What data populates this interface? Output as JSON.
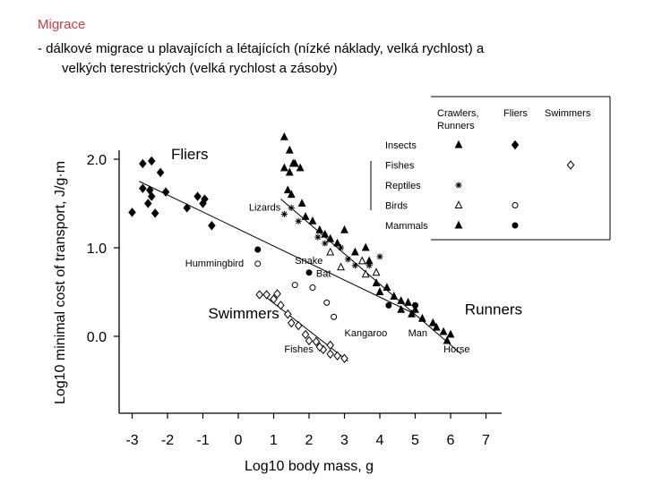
{
  "slide": {
    "title": "Migrace",
    "line1": "- dálkové migrace u plavajících a létajících (nízké náklady, velká rychlost) a",
    "line2": "velkých terestrických (velká rychlost a zásoby)"
  },
  "chart_data": {
    "type": "scatter",
    "xlabel": "Log10 body mass, g",
    "ylabel": "Log10 minimal cost of transport, J/g·m",
    "x_ticks": [
      "-3",
      "-2",
      "-1",
      "0",
      "1",
      "2",
      "3",
      "4",
      "5",
      "6",
      "7"
    ],
    "y_ticks": [
      "2.0",
      "1.0",
      "0.0"
    ],
    "xlim": [
      -3.5,
      7
    ],
    "ylim": [
      -0.9,
      2.4
    ],
    "legend": {
      "position": "top-right",
      "columns": [
        "Crawlers, Runners",
        "Fliers",
        "Swimmers"
      ],
      "rows": [
        {
          "label": "Insects",
          "runner": "triangle",
          "flier": "diamond",
          "swimmer": ""
        },
        {
          "label": "Fishes",
          "runner": "",
          "flier": "",
          "swimmer": "diamond-open"
        },
        {
          "label": "Reptiles",
          "runner": "star",
          "flier": "",
          "swimmer": ""
        },
        {
          "label": "Birds",
          "runner": "triangle-open",
          "flier": "circle-open",
          "swimmer": ""
        },
        {
          "label": "Mammals",
          "runner": "triangle",
          "flier": "circle",
          "swimmer": ""
        }
      ]
    },
    "group_labels": [
      {
        "text": "Fliers",
        "x": -1.9,
        "y": 2.0
      },
      {
        "text": "Swimmers",
        "x": -0.85,
        "y": 0.2
      },
      {
        "text": "Runners",
        "x": 6.4,
        "y": 0.25
      }
    ],
    "annotations": [
      {
        "text": "Lizards",
        "x": 0.3,
        "y": 1.42
      },
      {
        "text": "Hummingbird",
        "x": -1.5,
        "y": 0.79
      },
      {
        "text": "Snake",
        "x": 1.6,
        "y": 0.82
      },
      {
        "text": "Bat",
        "x": 2.2,
        "y": 0.67
      },
      {
        "text": "Kangaroo",
        "x": 3.0,
        "y": 0.0
      },
      {
        "text": "Man",
        "x": 4.8,
        "y": 0.0
      },
      {
        "text": "Fishes",
        "x": 1.3,
        "y": -0.18
      },
      {
        "text": "Horse",
        "x": 5.8,
        "y": -0.18
      }
    ],
    "series": [
      {
        "name": "Insects",
        "marker": "diamond",
        "x": [
          -3.0,
          -2.7,
          -2.45,
          -2.5,
          -2.2,
          -2.45,
          -2.7,
          -2.55,
          -2.35,
          -2.05,
          -1.45,
          -1.15,
          -1.0,
          -0.75,
          -0.95
        ],
        "y": [
          1.4,
          1.95,
          1.98,
          1.65,
          1.85,
          1.58,
          1.67,
          1.5,
          1.39,
          1.63,
          1.45,
          1.58,
          1.5,
          1.25,
          1.55
        ]
      },
      {
        "name": "Insects",
        "marker": "triangle",
        "x": [
          1.3,
          1.45,
          1.6,
          1.3,
          1.45,
          1.55,
          1.75,
          1.8,
          1.5,
          1.4,
          1.9,
          2.1,
          2.3,
          2.45,
          2.6,
          2.8,
          3.0,
          3.3,
          3.6,
          3.7
        ],
        "y": [
          2.25,
          2.1,
          1.95,
          1.9,
          1.85,
          1.95,
          1.9,
          1.5,
          1.6,
          1.65,
          1.35,
          1.3,
          1.2,
          1.15,
          1.1,
          1.05,
          1.2,
          0.95,
          1.0,
          0.85
        ]
      },
      {
        "name": "Mammals",
        "marker": "triangle",
        "x": [
          4.0,
          4.2,
          4.4,
          4.6,
          4.9,
          5.0,
          5.2,
          5.5,
          5.6,
          5.8,
          6.0,
          5.9,
          4.6,
          3.9,
          4.8
        ],
        "y": [
          0.5,
          0.55,
          0.45,
          0.3,
          0.25,
          0.3,
          0.2,
          0.15,
          0.1,
          0.05,
          0.02,
          -0.05,
          0.4,
          0.6,
          0.38
        ]
      },
      {
        "name": "Mammals",
        "marker": "circle",
        "x": [
          0.55,
          2.0,
          4.25,
          5.0
        ],
        "y": [
          0.98,
          0.72,
          0.35,
          0.35
        ]
      },
      {
        "name": "Reptiles",
        "marker": "star",
        "x": [
          1.3,
          1.5,
          1.7,
          2.25,
          2.45,
          2.9,
          3.1,
          3.3,
          3.7,
          4.0,
          5.0
        ],
        "y": [
          1.38,
          1.45,
          1.3,
          1.12,
          1.05,
          1.0,
          0.87,
          0.8,
          0.8,
          0.9,
          0.35
        ]
      },
      {
        "name": "Birds",
        "marker": "circle-open",
        "x": [
          0.55,
          1.6,
          2.1,
          2.7,
          2.5
        ],
        "y": [
          0.82,
          0.58,
          0.55,
          0.22,
          0.38
        ]
      },
      {
        "name": "Birds",
        "marker": "triangle-open",
        "x": [
          2.6,
          2.9,
          3.6,
          3.9,
          3.5
        ],
        "y": [
          0.95,
          0.78,
          0.7,
          0.72,
          0.85
        ]
      },
      {
        "name": "Fishes",
        "marker": "diamond-open",
        "x": [
          0.6,
          0.8,
          1.0,
          1.2,
          1.4,
          1.5,
          1.7,
          1.9,
          2.0,
          2.2,
          2.4,
          2.6,
          2.8,
          3.0,
          1.1,
          2.3,
          2.6
        ],
        "y": [
          0.47,
          0.47,
          0.42,
          0.35,
          0.25,
          0.15,
          0.12,
          0.02,
          -0.05,
          -0.06,
          -0.15,
          -0.1,
          -0.22,
          -0.25,
          0.48,
          -0.12,
          -0.2
        ]
      }
    ],
    "regression_lines": [
      {
        "group": "Fliers",
        "x": [
          -2.8,
          5.0
        ],
        "y": [
          1.75,
          0.25
        ]
      },
      {
        "group": "Runners",
        "x": [
          1.2,
          6.3
        ],
        "y": [
          1.55,
          -0.2
        ]
      },
      {
        "group": "Swimmers",
        "x": [
          0.6,
          3.1
        ],
        "y": [
          0.5,
          -0.28
        ]
      }
    ]
  }
}
